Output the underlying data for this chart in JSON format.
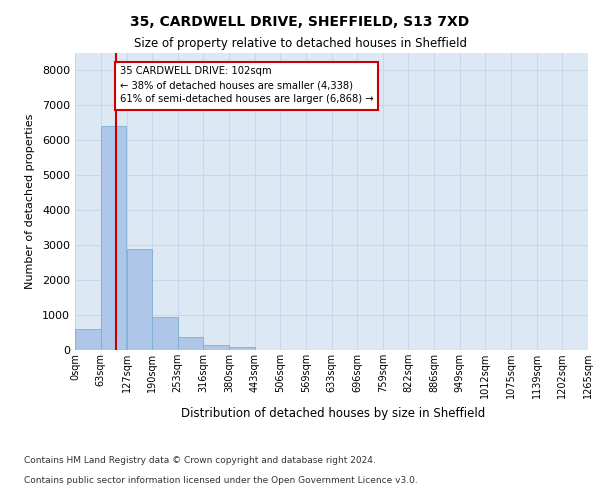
{
  "title1": "35, CARDWELL DRIVE, SHEFFIELD, S13 7XD",
  "title2": "Size of property relative to detached houses in Sheffield",
  "xlabel": "Distribution of detached houses by size in Sheffield",
  "ylabel": "Number of detached properties",
  "footer1": "Contains HM Land Registry data © Crown copyright and database right 2024.",
  "footer2": "Contains public sector information licensed under the Open Government Licence v3.0.",
  "bin_labels": [
    "0sqm",
    "63sqm",
    "127sqm",
    "190sqm",
    "253sqm",
    "316sqm",
    "380sqm",
    "443sqm",
    "506sqm",
    "569sqm",
    "633sqm",
    "696sqm",
    "759sqm",
    "822sqm",
    "886sqm",
    "949sqm",
    "1012sqm",
    "1075sqm",
    "1139sqm",
    "1202sqm",
    "1265sqm"
  ],
  "bin_edges": [
    0,
    63,
    127,
    190,
    253,
    316,
    380,
    443,
    506,
    569,
    633,
    696,
    759,
    822,
    886,
    949,
    1012,
    1075,
    1139,
    1202,
    1265
  ],
  "bar_heights": [
    600,
    6400,
    2900,
    950,
    360,
    150,
    80,
    0,
    0,
    0,
    0,
    0,
    0,
    0,
    0,
    0,
    0,
    0,
    0,
    0
  ],
  "bar_color": "#aec6e8",
  "bar_edgecolor": "#7aafd4",
  "property_size": 102,
  "property_label": "35 CARDWELL DRIVE: 102sqm",
  "annotation_line1": "← 38% of detached houses are smaller (4,338)",
  "annotation_line2": "61% of semi-detached houses are larger (6,868) →",
  "vline_color": "#cc0000",
  "annotation_box_edgecolor": "#cc0000",
  "ylim": [
    0,
    8500
  ],
  "yticks": [
    0,
    1000,
    2000,
    3000,
    4000,
    5000,
    6000,
    7000,
    8000
  ],
  "grid_color": "#c8d8eb",
  "plot_bg_color": "#dce9f5"
}
